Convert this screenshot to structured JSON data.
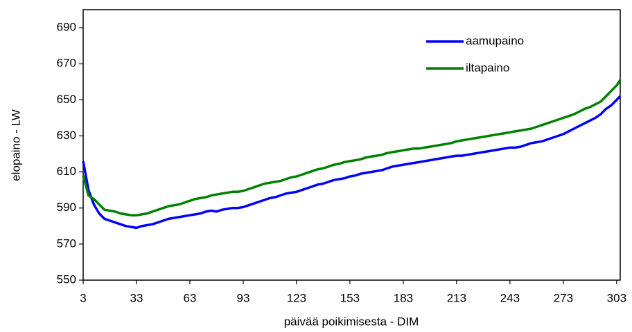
{
  "chart_data": {
    "type": "line",
    "x_label": "päivää poikimisesta - DIM",
    "y_label": "elopaino - LW",
    "x": [
      3,
      6,
      9,
      12,
      15,
      18,
      21,
      24,
      27,
      30,
      33,
      36,
      39,
      42,
      45,
      48,
      51,
      54,
      57,
      60,
      63,
      66,
      69,
      72,
      75,
      78,
      81,
      84,
      87,
      90,
      93,
      96,
      99,
      102,
      105,
      108,
      111,
      114,
      117,
      120,
      123,
      126,
      129,
      132,
      135,
      138,
      141,
      144,
      147,
      150,
      153,
      156,
      159,
      162,
      165,
      168,
      171,
      174,
      177,
      180,
      183,
      186,
      189,
      192,
      195,
      198,
      201,
      204,
      207,
      210,
      213,
      216,
      219,
      222,
      225,
      228,
      231,
      234,
      237,
      240,
      243,
      246,
      249,
      252,
      255,
      258,
      261,
      264,
      267,
      270,
      273,
      276,
      279,
      282,
      285,
      288,
      291,
      294,
      297,
      300,
      303,
      305
    ],
    "series": [
      {
        "name": "aamupaino",
        "color": "#0000ff",
        "values": [
          616,
          600,
          592,
          587,
          584,
          583,
          582,
          581,
          580,
          579.5,
          579,
          580,
          580.5,
          581,
          582,
          583,
          584,
          584.5,
          585,
          585.5,
          586,
          586.5,
          587,
          588,
          588.5,
          588,
          589,
          589.5,
          590,
          590,
          590.5,
          591.5,
          592.5,
          593.5,
          594.5,
          595.5,
          596,
          597,
          598,
          598.5,
          599,
          600,
          601,
          602,
          603,
          603.5,
          604.5,
          605.5,
          606,
          606.5,
          607.5,
          608,
          609,
          609.5,
          610,
          610.5,
          611,
          612,
          613,
          613.5,
          614,
          614.5,
          615,
          615.5,
          616,
          616.5,
          617,
          617.5,
          618,
          618.5,
          619,
          619,
          619.5,
          620,
          620.5,
          621,
          621.5,
          622,
          622.5,
          623,
          623.5,
          623.5,
          624,
          625,
          626,
          626.5,
          627,
          628,
          629,
          630,
          631,
          632.5,
          634,
          635.5,
          637,
          638.5,
          640,
          642,
          645,
          647,
          650,
          652
        ]
      },
      {
        "name": "iltapaino",
        "color": "#008000",
        "values": [
          608,
          597,
          595,
          592,
          589,
          588.5,
          588,
          587,
          586.5,
          586,
          586,
          586.5,
          587,
          588,
          589,
          590,
          591,
          591.5,
          592,
          593,
          594,
          595,
          595.5,
          596,
          597,
          597.5,
          598,
          598.5,
          599,
          599,
          599.5,
          600.5,
          601.5,
          602.5,
          603.5,
          604,
          604.5,
          605,
          606,
          607,
          607.5,
          608.5,
          609.5,
          610.5,
          611.5,
          612,
          613,
          614,
          614.5,
          615.5,
          616,
          616.5,
          617,
          618,
          618.5,
          619,
          619.5,
          620.5,
          621,
          621.5,
          622,
          622.5,
          623,
          623,
          623.5,
          624,
          624.5,
          625,
          625.5,
          626,
          627,
          627.5,
          628,
          628.5,
          629,
          629.5,
          630,
          630.5,
          631,
          631.5,
          632,
          632.5,
          633,
          633.5,
          634,
          635,
          636,
          637,
          638,
          639,
          640,
          641,
          642,
          643.5,
          645,
          646,
          647.5,
          649,
          652,
          655,
          658,
          661
        ]
      }
    ],
    "xlim": [
      3,
      305
    ],
    "xticks": [
      3,
      33,
      63,
      93,
      123,
      153,
      183,
      213,
      243,
      273,
      303
    ],
    "ylim": [
      550,
      700
    ],
    "yticks": [
      550,
      570,
      590,
      610,
      630,
      650,
      670,
      690
    ],
    "grid": false,
    "legend": "upper right"
  }
}
